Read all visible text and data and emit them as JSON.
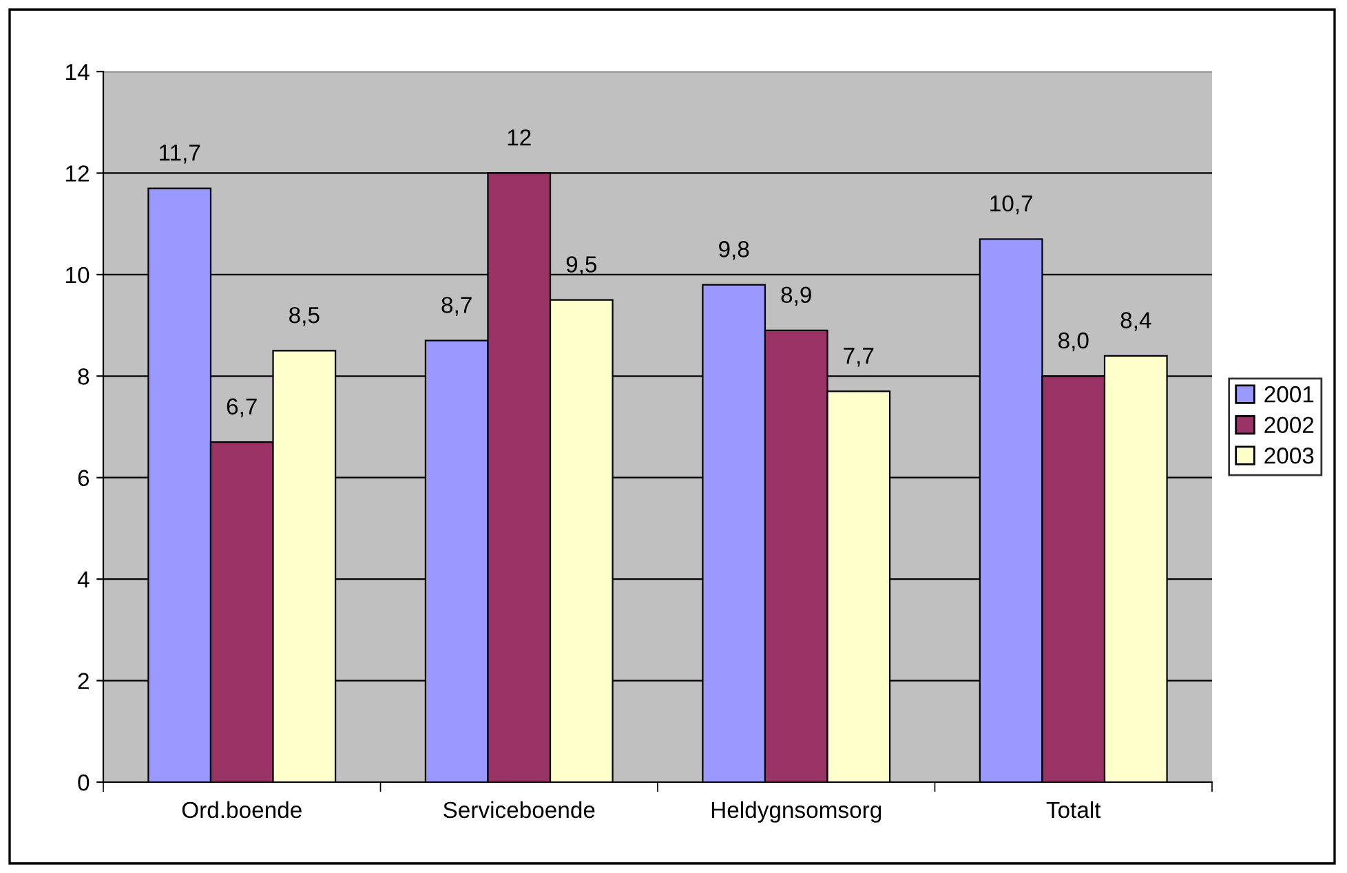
{
  "chart_data": {
    "type": "bar",
    "categories": [
      "Ord.boende",
      "Serviceboende",
      "Heldygnsomsorg",
      "Totalt"
    ],
    "series": [
      {
        "name": "2001",
        "color": "#9999ff",
        "values": [
          11.7,
          8.7,
          9.8,
          10.7
        ],
        "value_labels": [
          "11,7",
          "8,7",
          "9,8",
          "10,7"
        ]
      },
      {
        "name": "2002",
        "color": "#993366",
        "values": [
          6.7,
          12,
          8.9,
          8.0
        ],
        "value_labels": [
          "6,7",
          "12",
          "8,9",
          "8,0"
        ]
      },
      {
        "name": "2003",
        "color": "#ffffcc",
        "values": [
          8.5,
          9.5,
          7.7,
          8.4
        ],
        "value_labels": [
          "8,5",
          "9,5",
          "7,7",
          "8,4"
        ]
      }
    ],
    "ylim": [
      0,
      14
    ],
    "yticks": [
      0,
      2,
      4,
      6,
      8,
      10,
      12,
      14
    ],
    "grid": "y",
    "legend": "right"
  }
}
